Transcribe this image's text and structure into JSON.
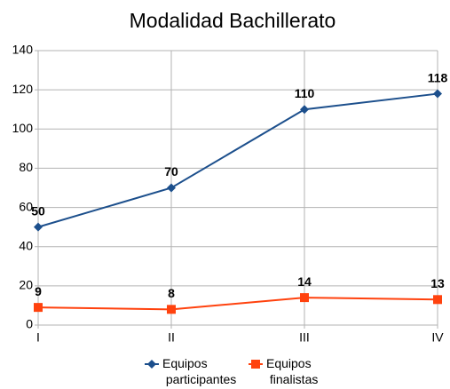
{
  "chart_data": {
    "type": "line",
    "title": "Modalidad Bachillerato",
    "categories": [
      "I",
      "II",
      "III",
      "IV"
    ],
    "series": [
      {
        "name": "Equipos participantes",
        "color": "#1c4f8c",
        "marker": "diamond",
        "values": [
          50,
          70,
          110,
          118
        ]
      },
      {
        "name": "Equipos finalistas",
        "color": "#ff420e",
        "marker": "square",
        "values": [
          9,
          8,
          14,
          13
        ]
      }
    ],
    "ylim": [
      0,
      140
    ],
    "yticks": [
      0,
      20,
      40,
      60,
      80,
      100,
      120,
      140
    ],
    "grid": true,
    "legend": "bottom"
  }
}
